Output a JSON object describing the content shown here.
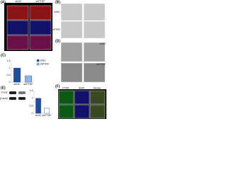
{
  "panels": [
    {
      "label": "(A)",
      "texts": [
        "shNC",
        "shPTRF"
      ]
    },
    {
      "label": "(B)",
      "texts": [
        "shNC",
        "shPTRF"
      ]
    },
    {
      "label": "(D)",
      "texts": [
        "shNC",
        "shPTRF"
      ]
    },
    {
      "label": "(F)",
      "texts": [
        "PTRF",
        "DAPI",
        "Merge"
      ]
    }
  ],
  "blots": {
    "label": "(E)",
    "rows": [
      "PTRF",
      "β-actin"
    ]
  },
  "chart_data": [
    {
      "type": "bar",
      "label": "(C)",
      "categories": [
        "shNC",
        "shPTRF"
      ],
      "values": [
        1,
        0.45
      ],
      "colors": [
        "#1f4e9c",
        "#8fb8e6"
      ],
      "ylim": [
        0,
        1.5
      ],
      "yticks": [
        0,
        0.5,
        1,
        1.5
      ]
    },
    {
      "type": "bar",
      "categories": [
        "shNC",
        "shPTRF"
      ],
      "values": [
        1,
        0.35
      ],
      "colors": [
        "#1f4e9c",
        "#ffffff"
      ],
      "ylim": [
        0,
        1.5
      ],
      "yticks": [
        0,
        0.5,
        1,
        1.5
      ]
    }
  ]
}
